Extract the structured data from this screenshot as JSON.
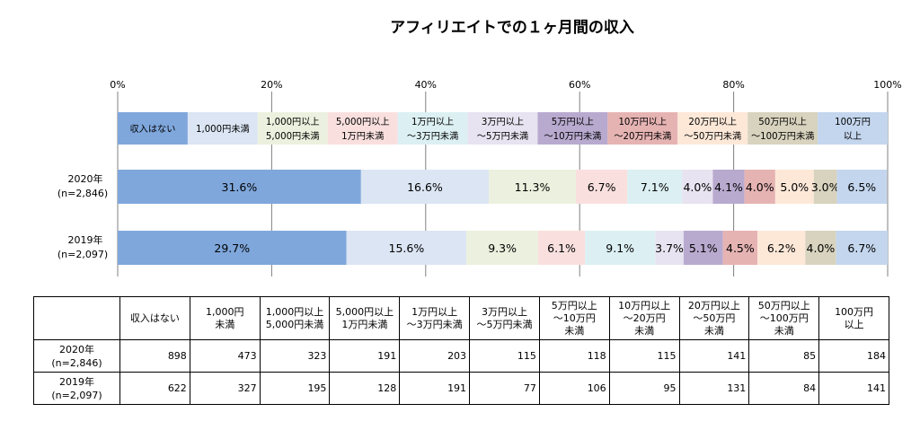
{
  "title": "アフィリエイトでの１ヶ月間の収入",
  "chart_data": {
    "type": "bar",
    "orientation": "horizontal",
    "stacked": "percent",
    "title": "アフィリエイトでの１ヶ月間の収入",
    "xlim": [
      0,
      100
    ],
    "x_ticks": [
      "0%",
      "20%",
      "40%",
      "60%",
      "80%",
      "100%"
    ],
    "categories": [
      {
        "line1": "2020年",
        "line2": "(n=2,846)"
      },
      {
        "line1": "2019年",
        "line2": "(n=2,097)"
      }
    ],
    "legend_position": "top",
    "series": [
      {
        "name_lines": [
          "収入はない"
        ],
        "color": "#7fa7dc",
        "values": [
          31.6,
          29.7
        ],
        "labels": [
          "31.6%",
          "29.7%"
        ]
      },
      {
        "name_lines": [
          "1,000円未満"
        ],
        "color": "#dbe5f3",
        "values": [
          16.6,
          15.6
        ],
        "labels": [
          "16.6%",
          "15.6%"
        ]
      },
      {
        "name_lines": [
          "1,000円以上",
          "5,000円未満"
        ],
        "color": "#ebf1de",
        "values": [
          11.3,
          9.3
        ],
        "labels": [
          "11.3%",
          "9.3%"
        ]
      },
      {
        "name_lines": [
          "5,000円以上",
          "1万円未満"
        ],
        "color": "#f9e0de",
        "values": [
          6.7,
          6.1
        ],
        "labels": [
          "6.7%",
          "6.1%"
        ]
      },
      {
        "name_lines": [
          "1万円以上",
          "～3万円未満"
        ],
        "color": "#dcf0f3",
        "values": [
          7.1,
          9.1
        ],
        "labels": [
          "7.1%",
          "9.1%"
        ]
      },
      {
        "name_lines": [
          "3万円以上",
          "～5万円未満"
        ],
        "color": "#e7e3f0",
        "values": [
          4.0,
          3.7
        ],
        "labels": [
          "4.0%",
          "3.7%"
        ]
      },
      {
        "name_lines": [
          "5万円以上",
          "～10万円未満"
        ],
        "color": "#b8aacf",
        "values": [
          4.1,
          5.1
        ],
        "labels": [
          "4.1%",
          "5.1%"
        ]
      },
      {
        "name_lines": [
          "10万円以上",
          "～20万円未満"
        ],
        "color": "#e6b3b3",
        "values": [
          4.0,
          4.5
        ],
        "labels": [
          "4.0%",
          "4.5%"
        ]
      },
      {
        "name_lines": [
          "20万円以上",
          "～50万円未満"
        ],
        "color": "#fde8d8",
        "values": [
          5.0,
          6.2
        ],
        "labels": [
          "5.0%",
          "6.2%"
        ]
      },
      {
        "name_lines": [
          "50万円以上",
          "～100万円未満"
        ],
        "color": "#d8d3be",
        "values": [
          3.0,
          4.0
        ],
        "labels": [
          "3.0%",
          "4.0%"
        ]
      },
      {
        "name_lines": [
          "100万円",
          "以上"
        ],
        "color": "#c4d6ee",
        "values": [
          6.5,
          6.7
        ],
        "labels": [
          "6.5%",
          "6.7%"
        ]
      }
    ]
  },
  "table": {
    "headers": [
      {
        "lines": [
          "収入はない"
        ]
      },
      {
        "lines": [
          "1,000円",
          "未満"
        ]
      },
      {
        "lines": [
          "1,000円以上",
          "5,000円未満"
        ]
      },
      {
        "lines": [
          "5,000円以上",
          "1万円未満"
        ]
      },
      {
        "lines": [
          "1万円以上",
          "～3万円未満"
        ]
      },
      {
        "lines": [
          "3万円以上",
          "～5万円未満"
        ]
      },
      {
        "lines": [
          "5万円以上",
          "～10万円",
          "未満"
        ]
      },
      {
        "lines": [
          "10万円以上",
          "～20万円",
          "未満"
        ]
      },
      {
        "lines": [
          "20万円以上",
          "～50万円",
          "未満"
        ]
      },
      {
        "lines": [
          "50万円以上",
          "～100万円",
          "未満"
        ]
      },
      {
        "lines": [
          "100万円",
          "以上"
        ]
      }
    ],
    "rows": [
      {
        "label_line1": "2020年",
        "label_line2": "(n=2,846)",
        "values": [
          "898",
          "473",
          "323",
          "191",
          "203",
          "115",
          "118",
          "115",
          "141",
          "85",
          "184"
        ]
      },
      {
        "label_line1": "2019年",
        "label_line2": "(n=2,097)",
        "values": [
          "622",
          "327",
          "195",
          "128",
          "191",
          "77",
          "106",
          "95",
          "131",
          "84",
          "141"
        ]
      }
    ]
  }
}
